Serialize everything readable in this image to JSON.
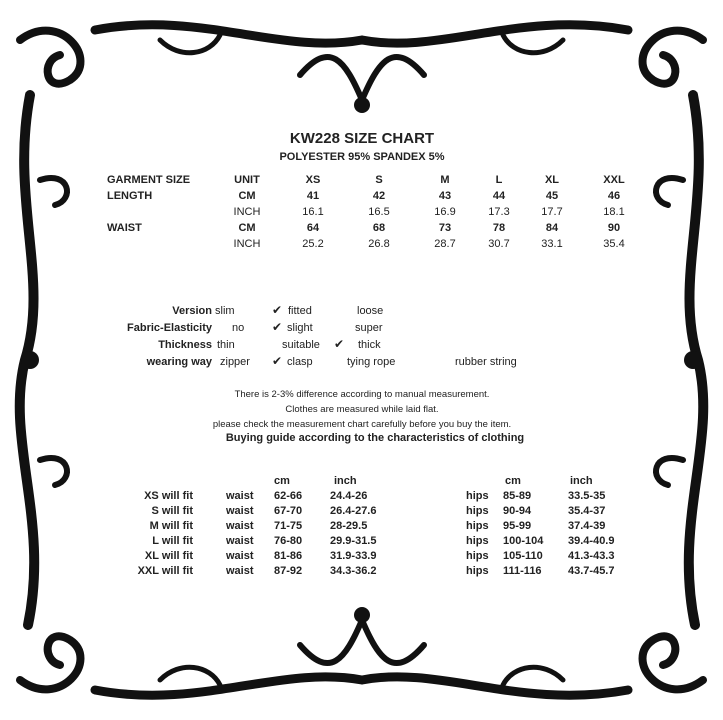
{
  "title": "KW228 SIZE CHART",
  "subtitle": "POLYESTER 95% SPANDEX 5%",
  "size_table": {
    "header": [
      "GARMENT SIZE",
      "UNIT",
      "XS",
      "S",
      "M",
      "L",
      "XL",
      "XXL"
    ],
    "rows": [
      {
        "label": "LENGTH",
        "unit": "CM",
        "values": [
          "41",
          "42",
          "43",
          "44",
          "45",
          "46"
        ]
      },
      {
        "label": "",
        "unit": "INCH",
        "values": [
          "16.1",
          "16.5",
          "16.9",
          "17.3",
          "17.7",
          "18.1"
        ]
      },
      {
        "label": "WAIST",
        "unit": "CM",
        "values": [
          "64",
          "68",
          "73",
          "78",
          "84",
          "90"
        ]
      },
      {
        "label": "",
        "unit": "INCH",
        "values": [
          "25.2",
          "26.8",
          "28.7",
          "30.7",
          "33.1",
          "35.4"
        ]
      }
    ]
  },
  "attributes": [
    {
      "label": "Version",
      "options": [
        "slim",
        "fitted",
        "loose"
      ],
      "checked": "fitted"
    },
    {
      "label": "Fabric-Elasticity",
      "options": [
        "no",
        "slight",
        "super"
      ],
      "checked": "slight"
    },
    {
      "label": "Thickness",
      "options": [
        "thin",
        "suitable",
        "thick"
      ],
      "checked": "suitable"
    },
    {
      "label": "wearing way",
      "options": [
        "zipper",
        "clasp",
        "tying rope",
        "rubber string"
      ],
      "checked": "clasp"
    }
  ],
  "check_mark": "✔",
  "notes": [
    "There is 2-3% difference according to manual measurement.",
    "Clothes are measured while laid flat.",
    "please check the measurement chart carefully before you buy the item."
  ],
  "buying_guide_title": "Buying guide according to the characteristics of clothing",
  "fit_table": {
    "header": {
      "cm": "cm",
      "inch": "inch"
    },
    "rows": [
      {
        "label": "XS will  fit",
        "waist": "waist",
        "waist_cm": "62-66",
        "waist_inch": "24.4-26",
        "hips": "hips",
        "hips_cm": "85-89",
        "hips_inch": "33.5-35"
      },
      {
        "label": "S will  fit",
        "waist": "waist",
        "waist_cm": "67-70",
        "waist_inch": "26.4-27.6",
        "hips": "hips",
        "hips_cm": "90-94",
        "hips_inch": "35.4-37"
      },
      {
        "label": "M will fit",
        "waist": "waist",
        "waist_cm": "71-75",
        "waist_inch": "28-29.5",
        "hips": "hips",
        "hips_cm": "95-99",
        "hips_inch": "37.4-39"
      },
      {
        "label": "L will fit",
        "waist": "waist",
        "waist_cm": "76-80",
        "waist_inch": "29.9-31.5",
        "hips": "hips",
        "hips_cm": "100-104",
        "hips_inch": "39.4-40.9"
      },
      {
        "label": "XL will fit",
        "waist": "waist",
        "waist_cm": "81-86",
        "waist_inch": "31.9-33.9",
        "hips": "hips",
        "hips_cm": "105-110",
        "hips_inch": "41.3-43.3"
      },
      {
        "label": "XXL will fit",
        "waist": "waist",
        "waist_cm": "87-92",
        "waist_inch": "34.3-36.2",
        "hips": "hips",
        "hips_cm": "111-116",
        "hips_inch": "43.7-45.7"
      }
    ]
  }
}
